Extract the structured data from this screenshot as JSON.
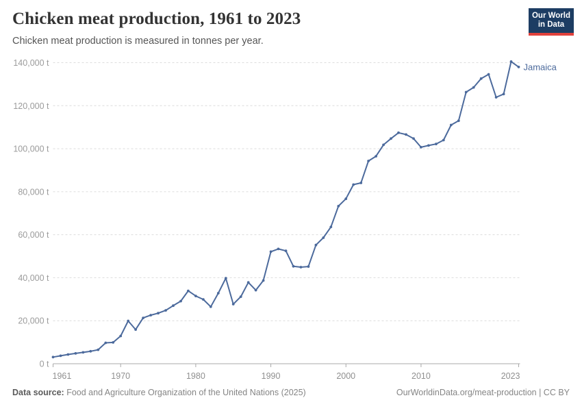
{
  "header": {
    "title": "Chicken meat production, 1961 to 2023",
    "subtitle": "Chicken meat production is measured in tonnes per year.",
    "logo": {
      "line1": "Our World",
      "line2": "in Data",
      "bg_color": "#1d3d63",
      "accent_color": "#e0413c"
    }
  },
  "chart_data": {
    "type": "line",
    "title": "Chicken meat production, 1961 to 2023",
    "subtitle": "Chicken meat production is measured in tonnes per year.",
    "unit": "tonnes per year",
    "xlim": [
      1961,
      2023
    ],
    "ylim": [
      0,
      140000
    ],
    "grid": "horizontal-dashed",
    "legend_position": "line-end-label",
    "line_color": "#4c6a9c",
    "x_ticks": [
      {
        "value": 1961,
        "label": "1961"
      },
      {
        "value": 1970,
        "label": "1970"
      },
      {
        "value": 1980,
        "label": "1980"
      },
      {
        "value": 1990,
        "label": "1990"
      },
      {
        "value": 2000,
        "label": "2000"
      },
      {
        "value": 2010,
        "label": "2010"
      },
      {
        "value": 2023,
        "label": "2023"
      }
    ],
    "y_ticks": [
      {
        "value": 0,
        "label": "0 t"
      },
      {
        "value": 20000,
        "label": "20,000 t"
      },
      {
        "value": 40000,
        "label": "40,000 t"
      },
      {
        "value": 60000,
        "label": "60,000 t"
      },
      {
        "value": 80000,
        "label": "80,000 t"
      },
      {
        "value": 100000,
        "label": "100,000 t"
      },
      {
        "value": 120000,
        "label": "120,000 t"
      },
      {
        "value": 140000,
        "label": "140,000 t"
      }
    ],
    "series": [
      {
        "name": "Jamaica",
        "color": "#4c6a9c",
        "x": [
          1961,
          1962,
          1963,
          1964,
          1965,
          1966,
          1967,
          1968,
          1969,
          1970,
          1971,
          1972,
          1973,
          1974,
          1975,
          1976,
          1977,
          1978,
          1979,
          1980,
          1981,
          1982,
          1983,
          1984,
          1985,
          1986,
          1987,
          1988,
          1989,
          1990,
          1991,
          1992,
          1993,
          1994,
          1995,
          1996,
          1997,
          1998,
          1999,
          2000,
          2001,
          2002,
          2003,
          2004,
          2005,
          2006,
          2007,
          2008,
          2009,
          2010,
          2011,
          2012,
          2013,
          2014,
          2015,
          2016,
          2017,
          2018,
          2019,
          2020,
          2021,
          2022,
          2023
        ],
        "values": [
          3100,
          3700,
          4300,
          4800,
          5300,
          5800,
          6500,
          9700,
          9900,
          12900,
          19900,
          15900,
          21300,
          22600,
          23500,
          24800,
          27000,
          29100,
          33900,
          31500,
          29900,
          26500,
          32800,
          39800,
          27700,
          31200,
          37800,
          34200,
          38700,
          52100,
          53400,
          52500,
          45300,
          44900,
          45200,
          55200,
          58600,
          63600,
          73300,
          76700,
          83300,
          84100,
          94300,
          96500,
          101800,
          104700,
          107400,
          106600,
          104700,
          100700,
          101500,
          102200,
          104000,
          111000,
          113000,
          126300,
          128500,
          132600,
          134600,
          123900,
          125400,
          140500,
          138000
        ]
      }
    ]
  },
  "footer": {
    "datasource_label": "Data source:",
    "datasource_text": " Food and Agriculture Organization of the United Nations (2025)",
    "credit": "OurWorldinData.org/meat-production | CC BY"
  }
}
